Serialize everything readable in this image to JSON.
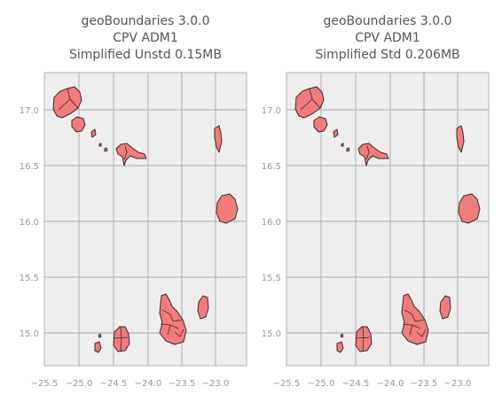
{
  "panels": [
    {
      "title_lines": [
        "geoBoundaries 3.0.0",
        "CPV ADM1",
        "Simplified Unstd 0.15MB"
      ]
    },
    {
      "title_lines": [
        "geoBoundaries 3.0.0",
        "CPV ADM1",
        "Simplified Std 0.206MB"
      ]
    }
  ],
  "axes": {
    "x_ticks": [
      "−25.5",
      "−25.0",
      "−24.5",
      "−24.0",
      "−23.5",
      "−23.0"
    ],
    "y_ticks": [
      "17.0",
      "16.5",
      "16.0",
      "15.5",
      "15.0"
    ]
  },
  "colors": {
    "land": "#f27c7c",
    "background": "#eeeeee",
    "grid": "#b8b8b8"
  }
}
